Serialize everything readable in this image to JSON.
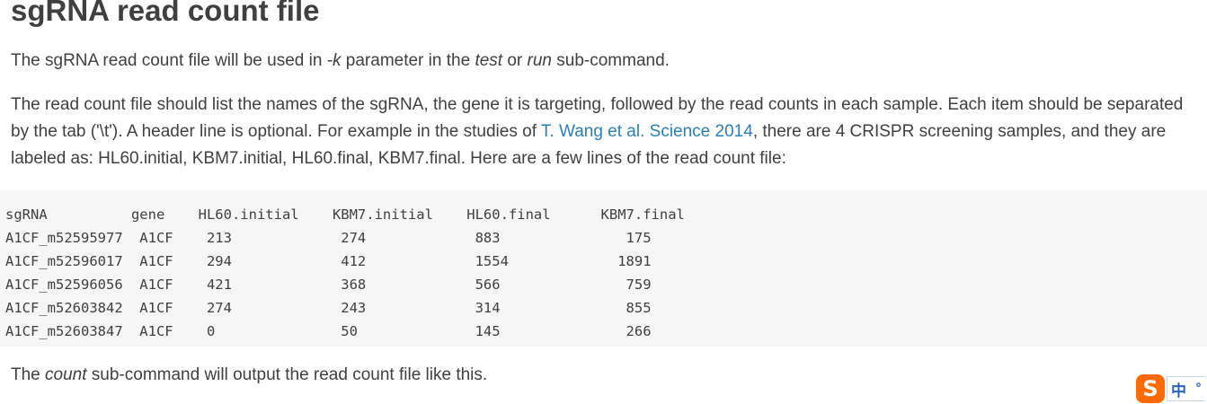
{
  "heading": "sgRNA read count file",
  "intro": {
    "t1": "The sgRNA read count file will be used in ",
    "param": "-k",
    "t2": " parameter in the ",
    "cmd_test": "test",
    "t3": " or ",
    "cmd_run": "run",
    "t4": " sub-command."
  },
  "description": {
    "t1": "The read count file should list the names of the sgRNA, the gene it is targeting, followed by the read counts in each sample. Each item should be separated by the tab ('\\t'). A header line is optional. For example in the studies of ",
    "link_text": "T. Wang et al. Science 2014",
    "t2": ", there are 4 CRISPR screening samples, and they are labeled as: HL60.initial, KBM7.initial, HL60.final, KBM7.final. Here are a few lines of the read count file:"
  },
  "code_block": {
    "text": "sgRNA          gene    HL60.initial    KBM7.initial    HL60.final      KBM7.final\nA1CF_m52595977  A1CF    213             274             883               175\nA1CF_m52596017  A1CF    294             412             1554             1891\nA1CF_m52596056  A1CF    421             368             566               759\nA1CF_m52603842  A1CF    274             243             314               855\nA1CF_m52603847  A1CF    0               50              145               266"
  },
  "outro": {
    "t1": "The ",
    "cmd_count": "count",
    "t2": " sub-command will output the read count file like this."
  },
  "ime": {
    "logo": "S",
    "mode": "中",
    "punct": "°",
    "logo_color": "#ff6a00",
    "accent_color": "#2a62c9"
  },
  "colors": {
    "text": "#404040",
    "link": "#2980b9",
    "code_bg": "#f6f6f6"
  }
}
